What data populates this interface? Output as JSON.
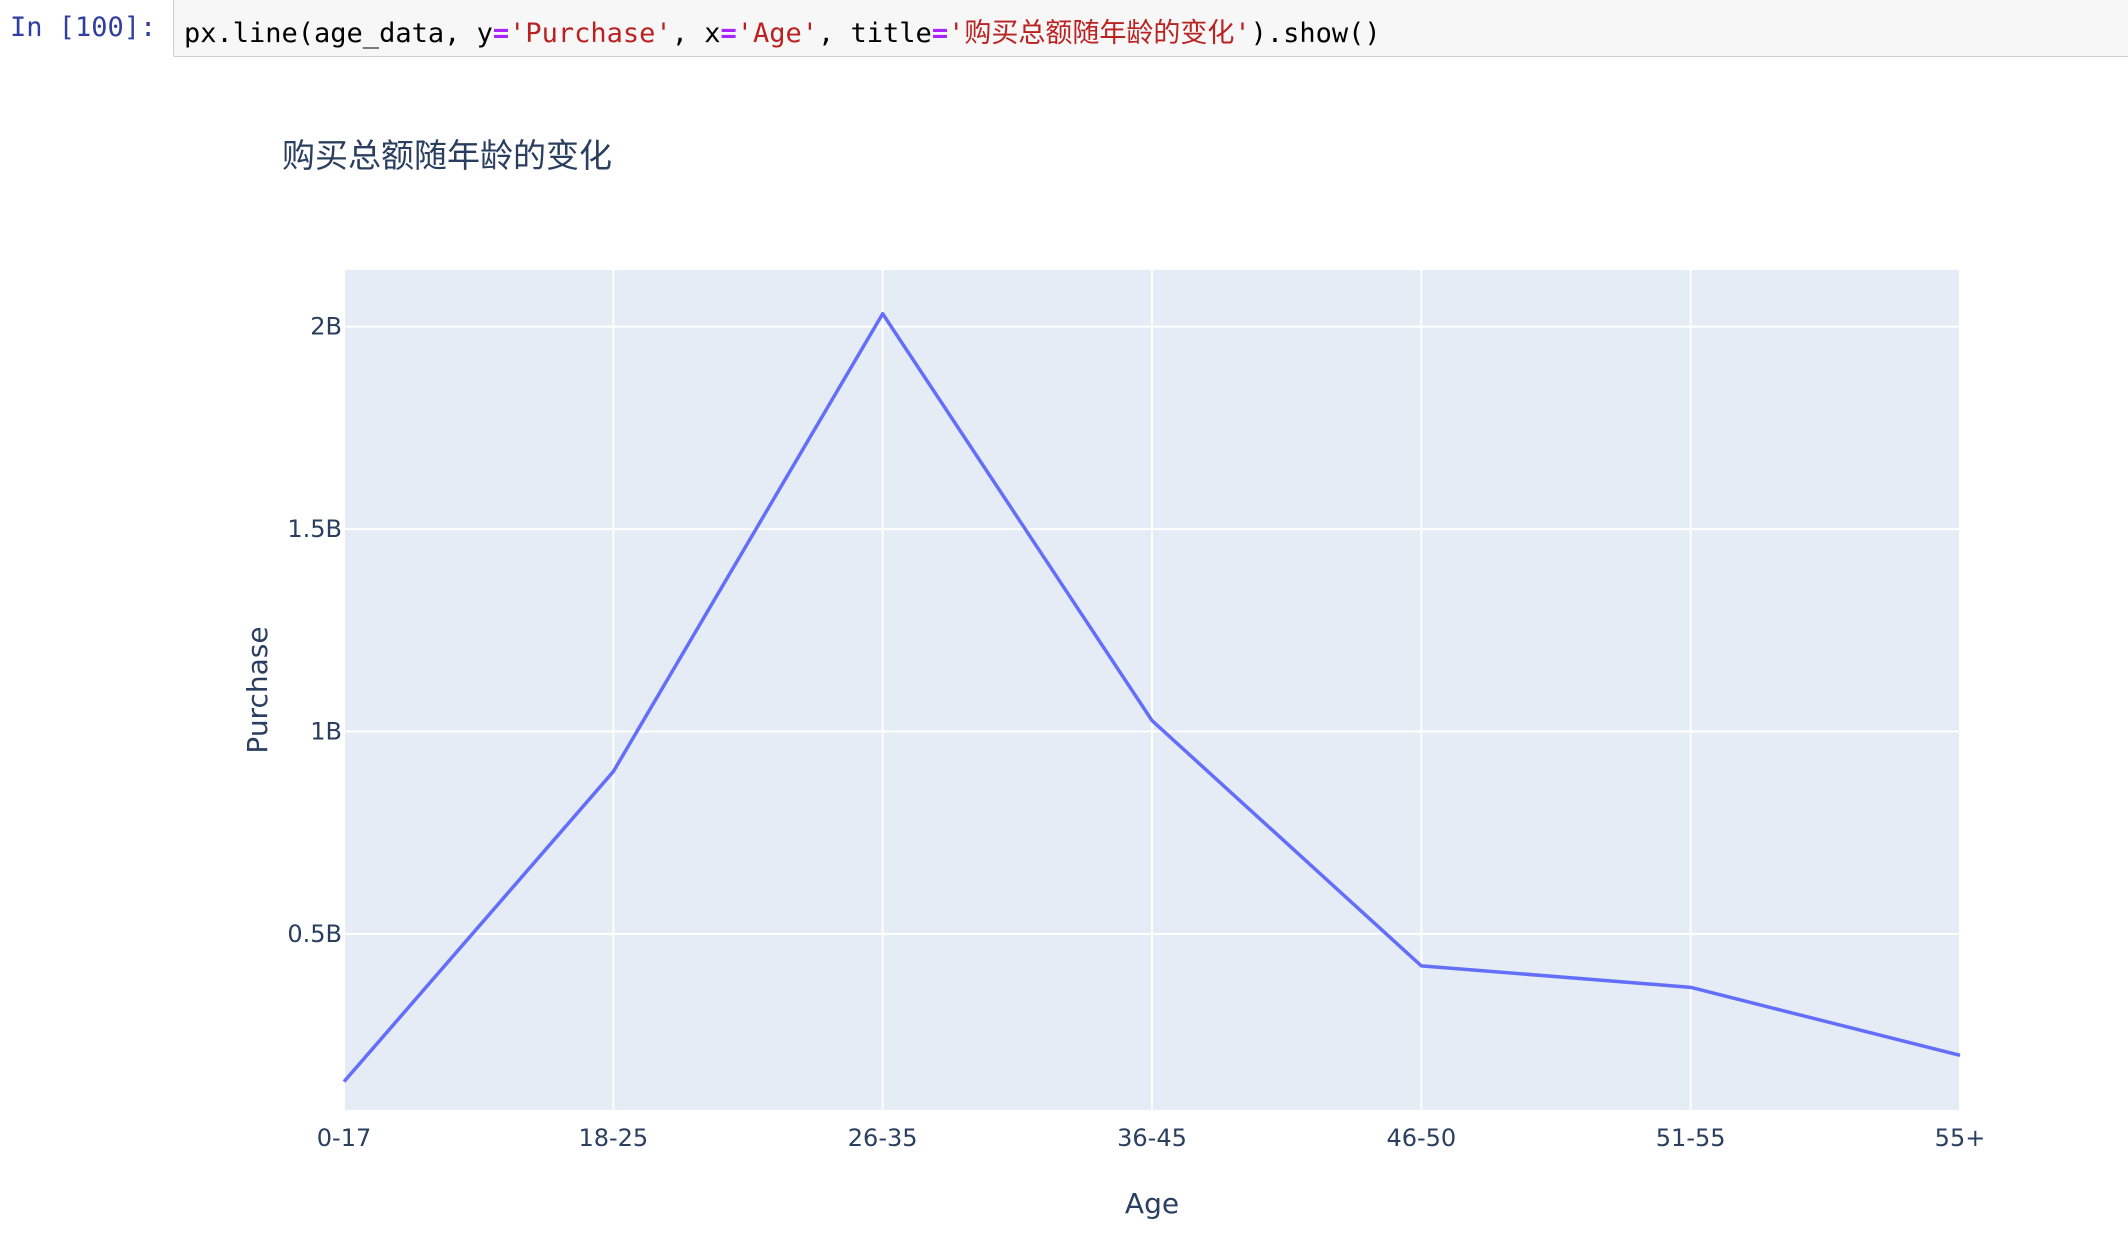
{
  "cell": {
    "prompt": "In [100]:",
    "code": {
      "t1": "px.line(age_data, y",
      "op1": "=",
      "s1": "'Purchase'",
      "t2": ", x",
      "op2": "=",
      "s2": "'Age'",
      "t3": ", title",
      "op3": "=",
      "s3": "'购买总额随年龄的变化'",
      "t4": ").show()"
    }
  },
  "colors": {
    "line": "#636efa",
    "plot_bg": "#e5ecf6",
    "grid": "#ffffff",
    "text": "#2a3f5f"
  },
  "chart_data": {
    "type": "line",
    "title": "购买总额随年龄的变化",
    "xlabel": "Age",
    "ylabel": "Purchase",
    "categories": [
      "0-17",
      "18-25",
      "26-35",
      "36-45",
      "46-50",
      "51-55",
      "55+"
    ],
    "values": [
      135000000,
      901000000,
      2032000000,
      1027000000,
      421000000,
      368000000,
      200000000
    ],
    "ylim": [
      65000000,
      2140000000
    ],
    "yticks": [
      {
        "value": 500000000,
        "label": "0.5B"
      },
      {
        "value": 1000000000,
        "label": "1B"
      },
      {
        "value": 1500000000,
        "label": "1.5B"
      },
      {
        "value": 2000000000,
        "label": "2B"
      }
    ],
    "grid": true,
    "legend": false
  }
}
